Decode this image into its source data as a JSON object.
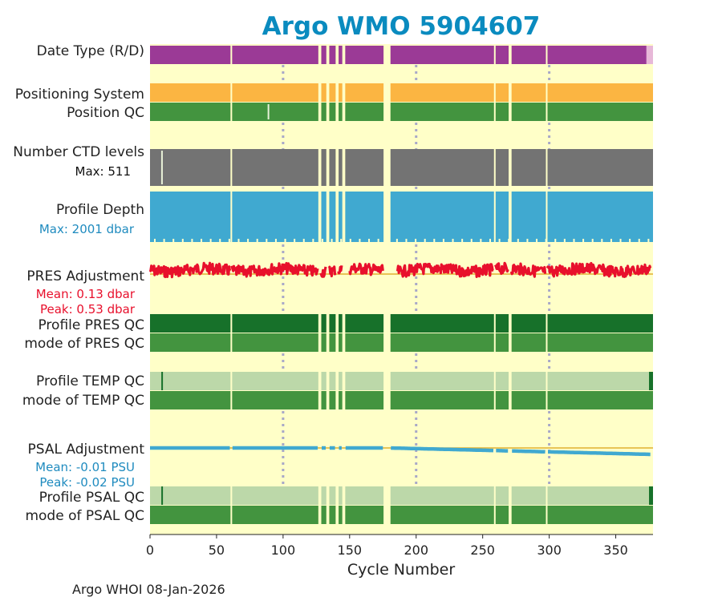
{
  "chart_data": {
    "type": "status-timeline",
    "title": "Argo WMO 5904607",
    "xlabel": "Cycle Number",
    "xlim": [
      0,
      378
    ],
    "xticks": [
      0,
      50,
      100,
      150,
      200,
      250,
      300,
      350
    ],
    "reference_lines_x": [
      100,
      200,
      300
    ],
    "gap_cycles": [
      61,
      127,
      128,
      133,
      134,
      140,
      141,
      145,
      146,
      176,
      177,
      178,
      179,
      180,
      259,
      270,
      271,
      298
    ],
    "rows": [
      {
        "label": "Date Type (R/D)",
        "color": "#9b3a96",
        "tail_color": "#e7b8d8",
        "tail_from": 373
      },
      {
        "label": "Positioning System",
        "color": "#fbb542"
      },
      {
        "label": "Position QC",
        "color": "#43943f",
        "note_cycles": [
          89
        ]
      },
      {
        "label": "Number CTD levels",
        "color": "#737373",
        "sub": "Max: 511",
        "note_cycles": [
          9
        ]
      },
      {
        "label": "Profile Depth",
        "color": "#40a9d0",
        "sub": "Max: 2001 dbar"
      },
      {
        "label": "PRES Adjustment",
        "color": "#e8102c",
        "sub1": "Mean: 0.13 dbar",
        "sub2": "Peak: 0.53 dbar",
        "reference": 0,
        "mean": 0.13,
        "peak": 0.53
      },
      {
        "label": "Profile PRES QC",
        "color": "#17712a"
      },
      {
        "label": "mode of PRES QC",
        "color": "#43943f"
      },
      {
        "label": "Profile TEMP QC",
        "color": "#bcd8a9",
        "edge_color": "#17712a"
      },
      {
        "label": "mode of TEMP QC",
        "color": "#43943f"
      },
      {
        "label": "PSAL Adjustment",
        "color": "#40a9d0",
        "sub1": "Mean: -0.01 PSU",
        "sub2": "Peak: -0.02 PSU",
        "reference": 0,
        "mean": -0.01,
        "peak": -0.02
      },
      {
        "label": "Profile PSAL QC",
        "color": "#bcd8a9",
        "edge_color": "#17712a"
      },
      {
        "label": "mode of PSAL QC",
        "color": "#43943f"
      }
    ]
  },
  "footer": "Argo WHOI 08-Jan-2026",
  "colors": {
    "title": "#0a8bbf",
    "background": "#ffffc8",
    "reference_line": "#a8a8c8",
    "label_blue": "#1f8bbf",
    "label_red": "#e8102c"
  }
}
